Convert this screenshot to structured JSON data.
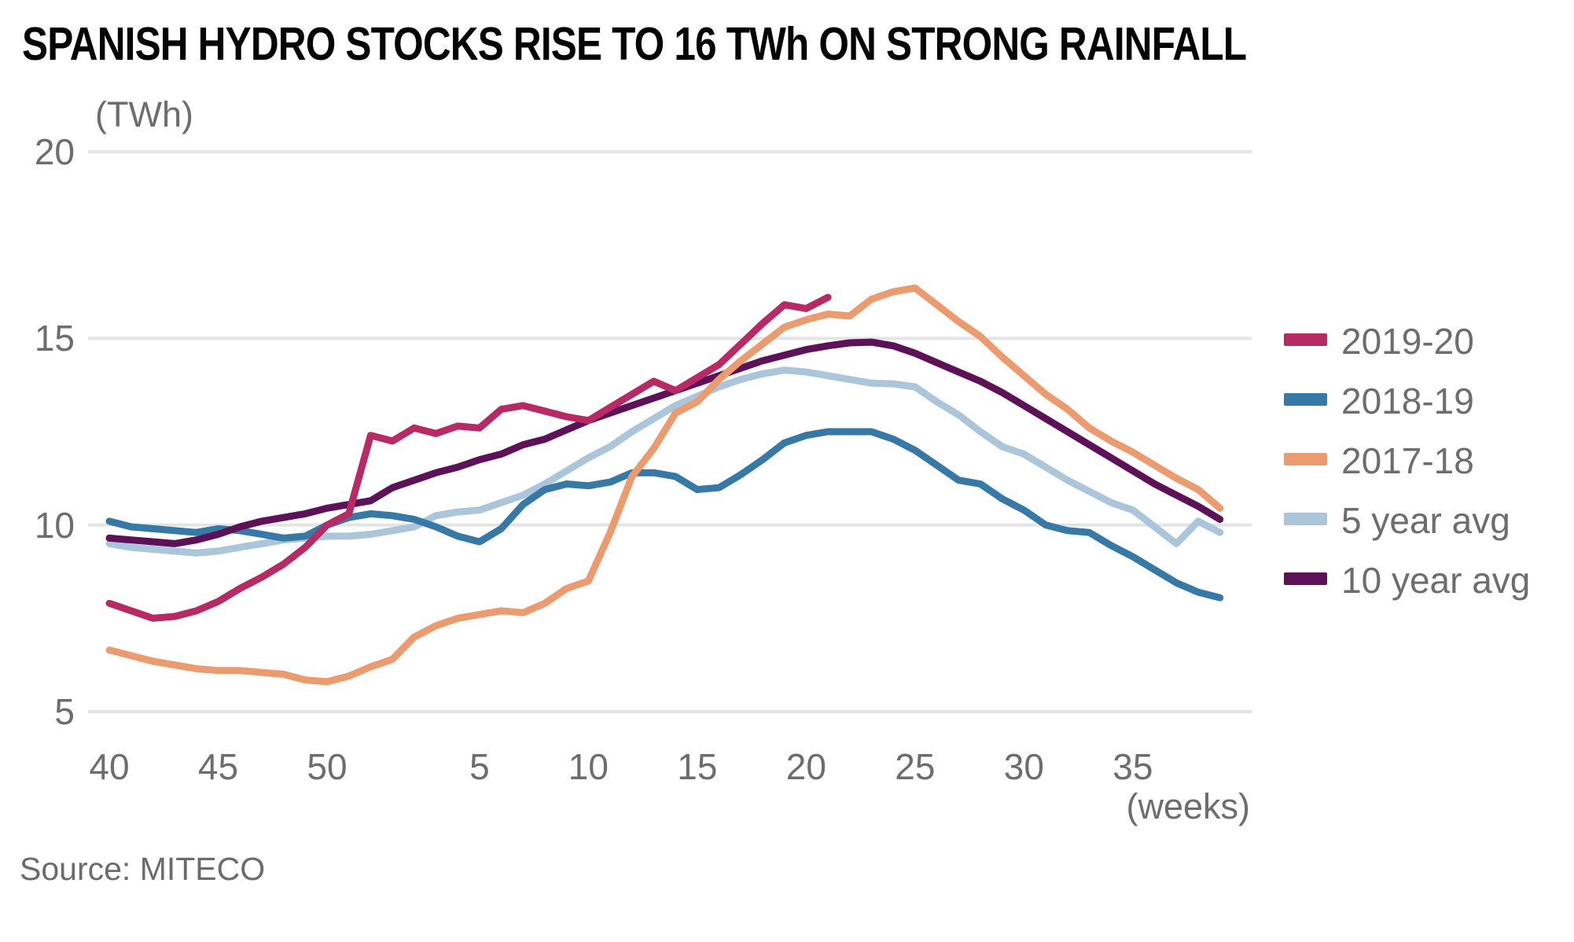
{
  "header": {
    "title": "SPANISH HYDRO STOCKS RISE TO 16 TWh ON STRONG RAINFALL"
  },
  "footer": {
    "source": "Source: MITECO"
  },
  "chart_data": {
    "type": "line",
    "title": "SPANISH HYDRO STOCKS RISE TO 16 TWh ON STRONG RAINFALL",
    "y_axis": {
      "unit": "(TWh)",
      "ticks": [
        20,
        15,
        10,
        5
      ],
      "min": 5,
      "max": 20,
      "grid": "horizontal gridlines only"
    },
    "x_axis": {
      "unit": "(weeks)",
      "description": "hydrological year: calendar weeks 40 to 52 then 1 to 39, one point per week",
      "week_sequence": "40..52 then 1..39",
      "tick_labels": [
        "40",
        "45",
        "50",
        "5",
        "10",
        "15",
        "20",
        "25",
        "30",
        "35"
      ],
      "tick_week_indices": [
        0,
        5,
        10,
        17,
        22,
        27,
        32,
        37,
        42,
        47
      ]
    },
    "legend_position": "right",
    "series": [
      {
        "name": "2019-20",
        "color": "#b72a63",
        "start_week_index": 0,
        "values": [
          7.9,
          7.7,
          7.5,
          7.55,
          7.7,
          7.95,
          8.3,
          8.6,
          8.95,
          9.4,
          10.0,
          10.3,
          12.4,
          12.25,
          12.6,
          12.45,
          12.65,
          12.6,
          13.1,
          13.2,
          13.05,
          12.9,
          12.8,
          13.15,
          13.5,
          13.85,
          13.6,
          13.95,
          14.3,
          14.85,
          15.4,
          15.9,
          15.8,
          16.1
        ]
      },
      {
        "name": "2018-19",
        "color": "#3679a7",
        "start_week_index": 0,
        "values": [
          10.1,
          9.95,
          9.9,
          9.85,
          9.8,
          9.9,
          9.85,
          9.75,
          9.65,
          9.7,
          10.0,
          10.2,
          10.3,
          10.25,
          10.15,
          9.95,
          9.7,
          9.55,
          9.9,
          10.55,
          10.95,
          11.1,
          11.05,
          11.15,
          11.4,
          11.4,
          11.3,
          10.95,
          11.0,
          11.35,
          11.75,
          12.2,
          12.4,
          12.5,
          12.5,
          12.5,
          12.3,
          12.0,
          11.6,
          11.2,
          11.1,
          10.7,
          10.4,
          10.0,
          9.85,
          9.8,
          9.45,
          9.15,
          8.8,
          8.45,
          8.2,
          8.05
        ]
      },
      {
        "name": "2017-18",
        "color": "#eb9b6e",
        "start_week_index": 0,
        "values": [
          6.65,
          6.5,
          6.35,
          6.25,
          6.15,
          6.1,
          6.1,
          6.05,
          6.0,
          5.85,
          5.8,
          5.95,
          6.2,
          6.4,
          7.0,
          7.3,
          7.5,
          7.6,
          7.7,
          7.65,
          7.9,
          8.3,
          8.5,
          9.8,
          11.3,
          12.05,
          13.0,
          13.3,
          13.9,
          14.4,
          14.85,
          15.3,
          15.5,
          15.65,
          15.6,
          16.05,
          16.25,
          16.35,
          15.9,
          15.45,
          15.05,
          14.5,
          14.0,
          13.5,
          13.1,
          12.6,
          12.25,
          11.95,
          11.6,
          11.25,
          10.95,
          10.45
        ]
      },
      {
        "name": "5 year avg",
        "color": "#abc6db",
        "start_week_index": 0,
        "values": [
          9.5,
          9.4,
          9.35,
          9.3,
          9.25,
          9.3,
          9.4,
          9.5,
          9.6,
          9.65,
          9.7,
          9.7,
          9.75,
          9.85,
          9.95,
          10.25,
          10.35,
          10.4,
          10.6,
          10.8,
          11.1,
          11.45,
          11.8,
          12.1,
          12.5,
          12.85,
          13.2,
          13.45,
          13.7,
          13.9,
          14.05,
          14.15,
          14.1,
          14.0,
          13.9,
          13.8,
          13.78,
          13.7,
          13.3,
          12.95,
          12.5,
          12.1,
          11.9,
          11.55,
          11.2,
          10.9,
          10.6,
          10.4,
          9.95,
          9.5,
          10.1,
          9.8
        ]
      },
      {
        "name": "10 year avg",
        "color": "#5d1257",
        "start_week_index": 0,
        "values": [
          9.65,
          9.6,
          9.55,
          9.5,
          9.6,
          9.75,
          9.95,
          10.1,
          10.2,
          10.3,
          10.45,
          10.55,
          10.65,
          11.0,
          11.2,
          11.4,
          11.55,
          11.75,
          11.9,
          12.15,
          12.3,
          12.55,
          12.8,
          13.0,
          13.2,
          13.4,
          13.6,
          13.8,
          14.0,
          14.2,
          14.4,
          14.55,
          14.7,
          14.8,
          14.88,
          14.9,
          14.8,
          14.6,
          14.35,
          14.1,
          13.85,
          13.55,
          13.2,
          12.85,
          12.5,
          12.15,
          11.8,
          11.45,
          11.1,
          10.8,
          10.5,
          10.15
        ]
      }
    ],
    "draw_order_series_indices": [
      3,
      1,
      4,
      2,
      0
    ],
    "style": {
      "line_width": 9,
      "grid_color": "#e4e4e4",
      "tick_text_color": "#6d6d6d"
    }
  }
}
